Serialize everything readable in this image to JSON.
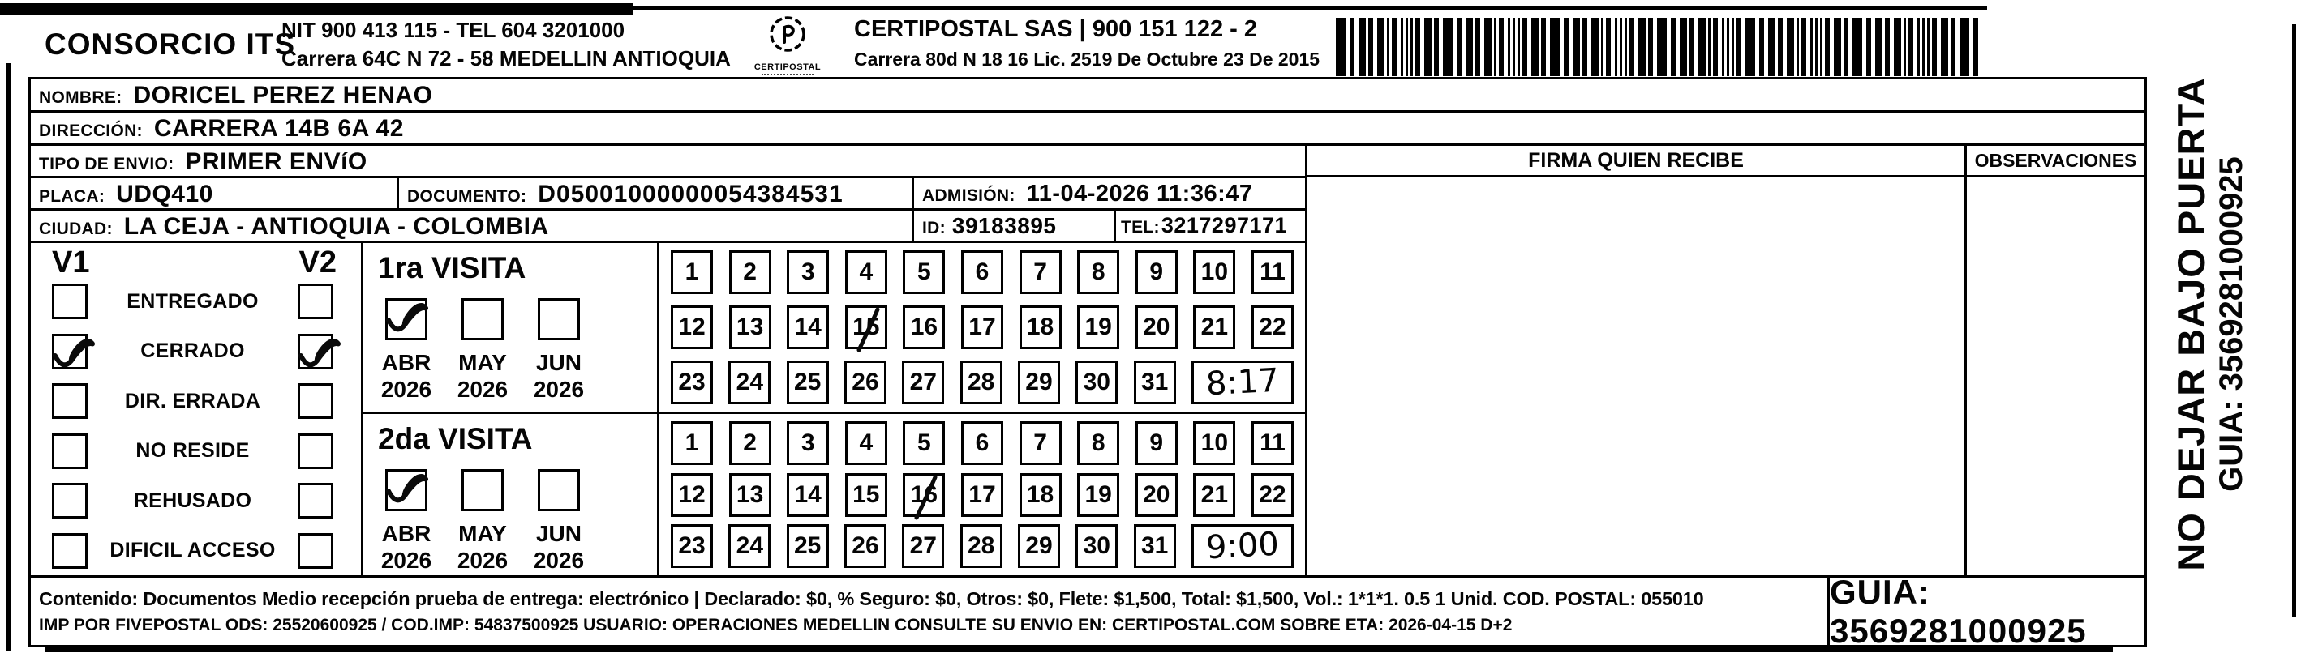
{
  "header": {
    "company": "CONSORCIO ITS",
    "nit_line": "NIT 900 413 115 - TEL 604 3201000",
    "address_line": "Carrera 64C N 72 - 58 MEDELLIN ANTIOQUIA",
    "logo_text": "CERTIPOSTAL",
    "certipostal_line": "CERTIPOSTAL SAS | 900 151 122 - 2",
    "certipostal_address": "Carrera 80d N 18 16  Lic. 2519 De Octubre 23 De 2015"
  },
  "recipient": {
    "nombre_label": "NOMBRE:",
    "nombre": "DORICEL PEREZ HENAO",
    "direccion_label": "DIRECCIÓN:",
    "direccion": "CARRERA 14B 6A 42",
    "tipo_label": "TIPO DE ENVIO:",
    "tipo": "PRIMER ENVíO",
    "placa_label": "PLACA:",
    "placa": "UDQ410",
    "documento_label": "DOCUMENTO:",
    "documento": "D05001000000054384531",
    "admision_label": "ADMISIÓN:",
    "admision": "11-04-2026 11:36:47",
    "ciudad_label": "CIUDAD:",
    "ciudad": "LA CEJA - ANTIOQUIA - COLOMBIA",
    "id_label": "ID:",
    "id": "39183895",
    "tel_label": "TEL:",
    "tel": "3217297171"
  },
  "status": {
    "v1_label": "V1",
    "v2_label": "V2",
    "rows": [
      {
        "label": "ENTREGADO",
        "v1": false,
        "v2": false
      },
      {
        "label": "CERRADO",
        "v1": true,
        "v2": true
      },
      {
        "label": "DIR. ERRADA",
        "v1": false,
        "v2": false
      },
      {
        "label": "NO RESIDE",
        "v1": false,
        "v2": false
      },
      {
        "label": "REHUSADO",
        "v1": false,
        "v2": false
      },
      {
        "label": "DIFICIL ACCESO",
        "v1": false,
        "v2": false
      }
    ]
  },
  "day_grid": {
    "rows": [
      [
        1,
        2,
        3,
        4,
        5,
        6,
        7,
        8,
        9,
        10,
        11
      ],
      [
        12,
        13,
        14,
        15,
        16,
        17,
        18,
        19,
        20,
        21,
        22
      ],
      [
        23,
        24,
        25,
        26,
        27,
        28,
        29,
        30,
        31
      ]
    ]
  },
  "visits": [
    {
      "title": "1ra VISITA",
      "months": [
        {
          "label": "ABR",
          "year": "2026",
          "checked": true
        },
        {
          "label": "MAY",
          "year": "2026",
          "checked": false
        },
        {
          "label": "JUN",
          "year": "2026",
          "checked": false
        }
      ],
      "marked_day": 15,
      "time": "8:17"
    },
    {
      "title": "2da VISITA",
      "months": [
        {
          "label": "ABR",
          "year": "2026",
          "checked": true
        },
        {
          "label": "MAY",
          "year": "2026",
          "checked": false
        },
        {
          "label": "JUN",
          "year": "2026",
          "checked": false
        }
      ],
      "marked_day": 16,
      "time": "9:00"
    }
  ],
  "signature": {
    "firma_label": "FIRMA QUIEN RECIBE",
    "observaciones_label": "OBSERVACIONES"
  },
  "side": {
    "warning": "NO DEJAR BAJO PUERTA",
    "guia": "GUIA: 3569281000925"
  },
  "footer": {
    "line1": "Contenido: Documentos Medio recepción prueba de entrega: electrónico | Declarado: $0, % Seguro: $0, Otros: $0, Flete: $1,500, Total: $1,500, Vol.: 1*1*1. 0.5 1 Unid. COD. POSTAL: 055010",
    "line2": "IMP POR FIVEPOSTAL ODS: 25520600925 / COD.IMP: 54837500925 USUARIO: OPERACIONES MEDELLIN CONSULTE SU ENVIO EN: CERTIPOSTAL.COM SOBRE ETA: 2026-04-15 D+2",
    "guia_box": "GUIA: 3569281000925"
  }
}
